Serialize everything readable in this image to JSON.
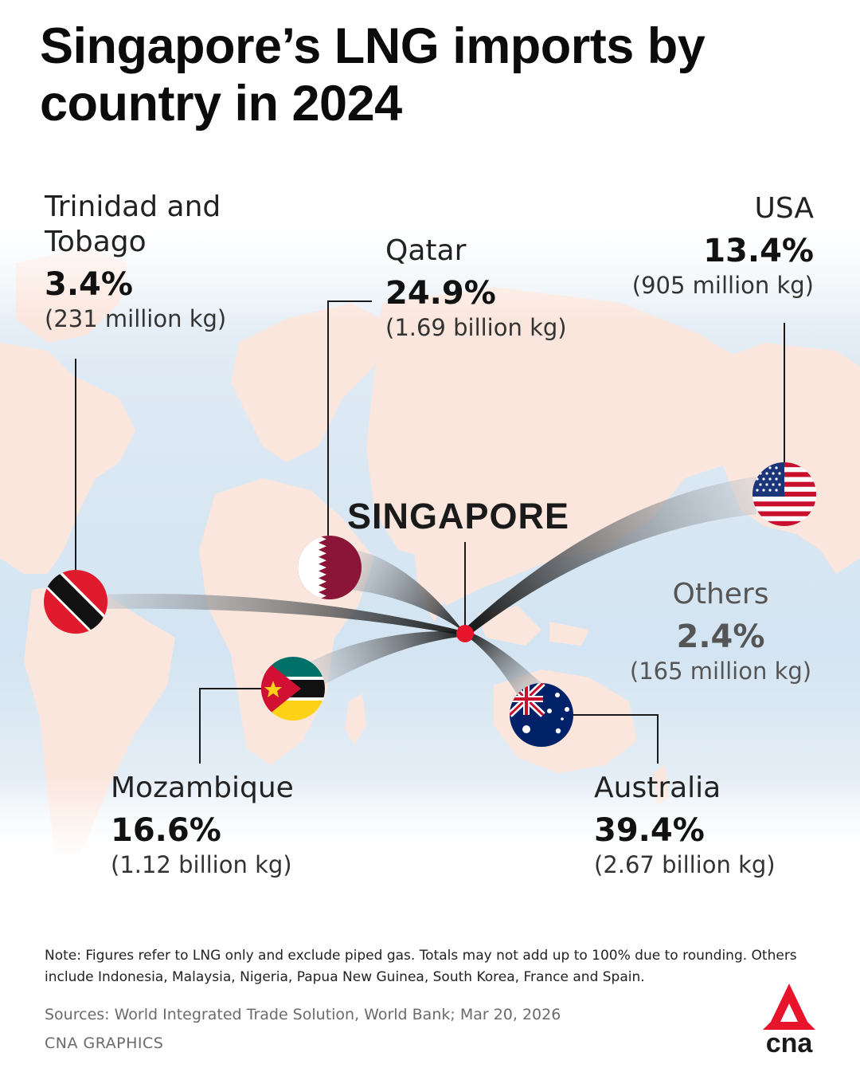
{
  "title": "Singapore’s LNG imports by country in 2024",
  "hub": {
    "label": "SINGAPORE"
  },
  "countries": [
    {
      "key": "trinidad",
      "name": "Trinidad and Tobago",
      "name_line1": "Trinidad and",
      "name_line2": "Tobago",
      "percent": "3.4%",
      "amount": "(231 million kg)",
      "flag": "trinidad-flag-icon"
    },
    {
      "key": "qatar",
      "name": "Qatar",
      "percent": "24.9%",
      "amount": "(1.69 billion kg)",
      "flag": "qatar-flag-icon"
    },
    {
      "key": "usa",
      "name": "USA",
      "percent": "13.4%",
      "amount": "(905 million kg)",
      "flag": "usa-flag-icon"
    },
    {
      "key": "others",
      "name": "Others",
      "percent": "2.4%",
      "amount": "(165 million kg)"
    },
    {
      "key": "mozambique",
      "name": "Mozambique",
      "percent": "16.6%",
      "amount": "(1.12 billion kg)",
      "flag": "mozambique-flag-icon"
    },
    {
      "key": "australia",
      "name": "Australia",
      "percent": "39.4%",
      "amount": "(2.67 billion kg)",
      "flag": "australia-flag-icon"
    }
  ],
  "note": "Note: Figures refer to LNG only and exclude piped gas. Totals may not add up to 100% due to rounding. Others include Indonesia, Malaysia, Nigeria, Papua New Guinea, South Korea, France and Spain.",
  "sources": "Sources: World Integrated Trade Solution, World Bank; Mar 20, 2026",
  "credit": "CNA GRAPHICS",
  "logo_text": "cna",
  "colors": {
    "land": "#fbe6dd",
    "ocean": "#d6e6f3",
    "hub": "#e8142b",
    "logo": "#e8142b"
  }
}
